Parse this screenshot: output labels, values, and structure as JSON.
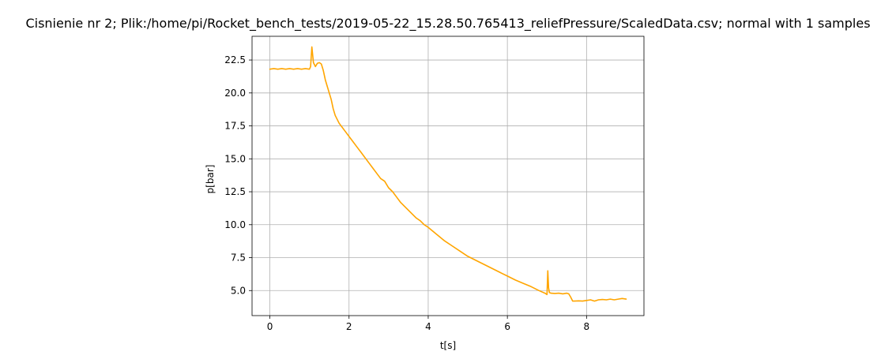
{
  "chart_data": {
    "type": "line",
    "title": "Cisnienie nr 2; Plik:/home/pi/Rocket_bench_tests/2019-05-22_15.28.50.765413_reliefPressure/ScaledData.csv; normal with 1 samples",
    "xlabel": "t[s]",
    "ylabel": "p[bar]",
    "xlim": [
      -0.45,
      9.45
    ],
    "ylim": [
      3.1,
      24.3
    ],
    "grid": true,
    "colors": {
      "line": "#ffa500",
      "grid": "#b0b0b0",
      "axis": "#000000"
    },
    "x_ticks": [
      {
        "value": 0,
        "label": "0"
      },
      {
        "value": 2,
        "label": "2"
      },
      {
        "value": 4,
        "label": "4"
      },
      {
        "value": 6,
        "label": "6"
      },
      {
        "value": 8,
        "label": "8"
      }
    ],
    "y_ticks": [
      {
        "value": 5.0,
        "label": "5.0"
      },
      {
        "value": 7.5,
        "label": "7.5"
      },
      {
        "value": 10.0,
        "label": "10.0"
      },
      {
        "value": 12.5,
        "label": "12.5"
      },
      {
        "value": 15.0,
        "label": "15.0"
      },
      {
        "value": 17.5,
        "label": "17.5"
      },
      {
        "value": 20.0,
        "label": "20.0"
      },
      {
        "value": 22.5,
        "label": "22.5"
      }
    ],
    "series": [
      {
        "color": "#ffa500",
        "x": [
          0,
          0.1,
          0.2,
          0.3,
          0.4,
          0.5,
          0.6,
          0.7,
          0.8,
          0.9,
          1.0,
          1.03,
          1.06,
          1.1,
          1.15,
          1.2,
          1.25,
          1.3,
          1.35,
          1.4,
          1.45,
          1.5,
          1.55,
          1.6,
          1.65,
          1.7,
          1.75,
          1.8,
          1.9,
          2.0,
          2.1,
          2.2,
          2.3,
          2.4,
          2.5,
          2.6,
          2.7,
          2.8,
          2.9,
          3.0,
          3.1,
          3.2,
          3.3,
          3.4,
          3.5,
          3.6,
          3.7,
          3.8,
          3.9,
          4.0,
          4.2,
          4.4,
          4.6,
          4.8,
          5.0,
          5.2,
          5.4,
          5.6,
          5.8,
          6.0,
          6.2,
          6.4,
          6.6,
          6.8,
          6.95,
          7.0,
          7.02,
          7.04,
          7.06,
          7.1,
          7.2,
          7.3,
          7.4,
          7.5,
          7.55,
          7.6,
          7.65,
          7.7,
          7.8,
          7.9,
          8.0,
          8.1,
          8.2,
          8.3,
          8.4,
          8.5,
          8.6,
          8.7,
          8.8,
          8.9,
          9.0
        ],
        "y": [
          21.8,
          21.85,
          21.8,
          21.85,
          21.8,
          21.85,
          21.8,
          21.85,
          21.8,
          21.85,
          21.8,
          22.0,
          23.5,
          22.3,
          22.0,
          22.25,
          22.3,
          22.2,
          21.7,
          21.0,
          20.5,
          20.0,
          19.5,
          18.8,
          18.3,
          18.0,
          17.7,
          17.5,
          17.1,
          16.7,
          16.3,
          15.9,
          15.5,
          15.1,
          14.7,
          14.3,
          13.9,
          13.5,
          13.3,
          12.8,
          12.5,
          12.1,
          11.7,
          11.4,
          11.1,
          10.8,
          10.5,
          10.3,
          10.0,
          9.8,
          9.3,
          8.8,
          8.4,
          8.0,
          7.6,
          7.3,
          7.0,
          6.7,
          6.4,
          6.1,
          5.8,
          5.55,
          5.3,
          5.0,
          4.8,
          4.7,
          6.5,
          5.2,
          4.85,
          4.8,
          4.78,
          4.8,
          4.75,
          4.8,
          4.75,
          4.5,
          4.2,
          4.2,
          4.22,
          4.2,
          4.25,
          4.3,
          4.2,
          4.3,
          4.32,
          4.3,
          4.35,
          4.3,
          4.35,
          4.4,
          4.35
        ]
      }
    ]
  }
}
